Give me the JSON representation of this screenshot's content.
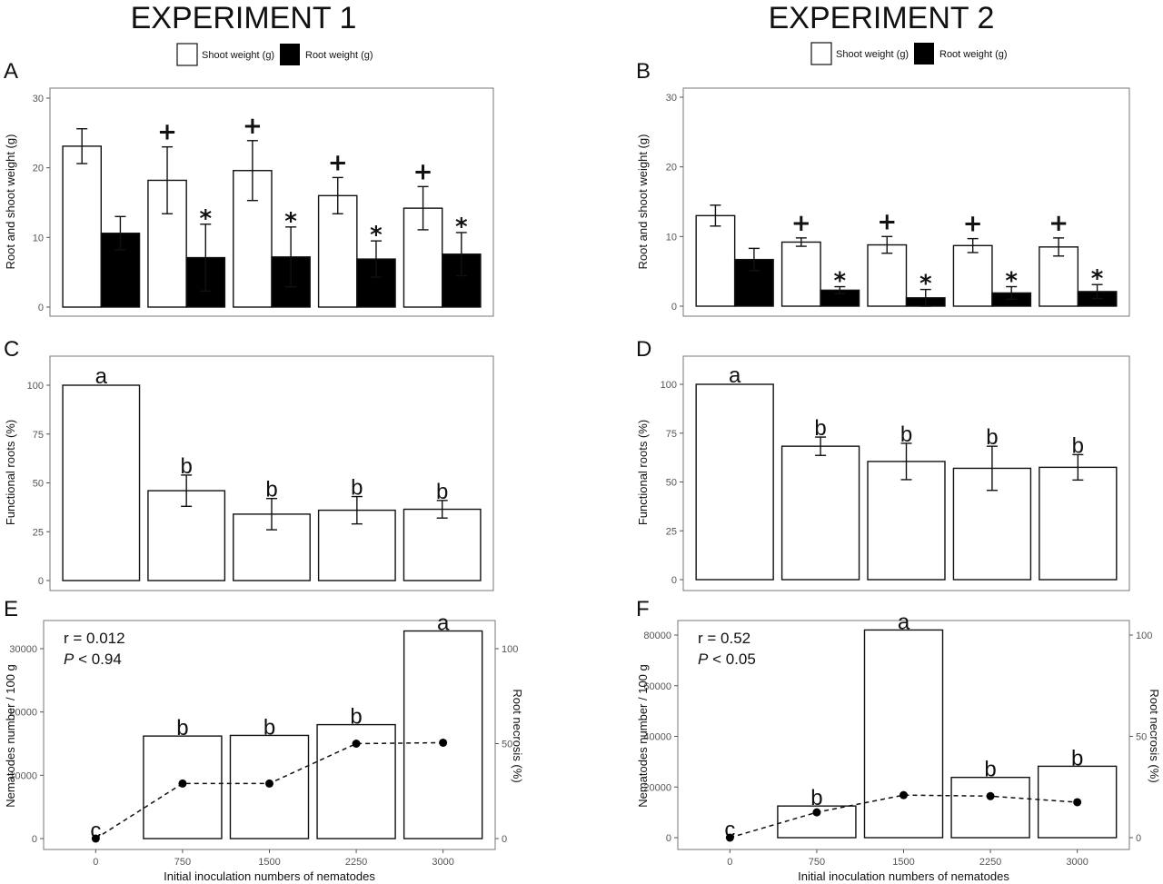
{
  "headers": [
    "EXPERIMENT 1",
    "EXPERIMENT 2"
  ],
  "legend": [
    {
      "name": "Shoot weight (g)",
      "color": "#ffffff"
    },
    {
      "name": "Root weight (g)",
      "color": "#000000"
    }
  ],
  "chart_data": [
    {
      "panel": "A",
      "type": "bar",
      "experiment": "EXPERIMENT 1",
      "ylabel": "Root and shoot weight (g)",
      "ylim": [
        0,
        30
      ],
      "yticks": [
        "0",
        "10",
        "20",
        "30"
      ],
      "series": [
        {
          "name": "Shoot weight (g)",
          "color": "#ffffff",
          "values": [
            23.1,
            18.2,
            19.6,
            16.0,
            14.2
          ],
          "errors": [
            2.5,
            4.8,
            4.3,
            2.6,
            3.1
          ],
          "markers": [
            "",
            "+",
            "+",
            "+",
            "+"
          ]
        },
        {
          "name": "Root weight (g)",
          "color": "#000000",
          "values": [
            10.6,
            7.1,
            7.2,
            6.9,
            7.6
          ],
          "errors": [
            2.4,
            4.8,
            4.3,
            2.6,
            3.1
          ],
          "markers": [
            "",
            "*",
            "*",
            "*",
            "*"
          ]
        }
      ]
    },
    {
      "panel": "B",
      "type": "bar",
      "experiment": "EXPERIMENT 2",
      "ylabel": "Root and shoot weight (g)",
      "ylim": [
        0,
        30
      ],
      "yticks": [
        "0",
        "10",
        "20",
        "30"
      ],
      "series": [
        {
          "name": "Shoot weight (g)",
          "color": "#ffffff",
          "values": [
            13.0,
            9.2,
            8.8,
            8.7,
            8.5
          ],
          "errors": [
            1.5,
            0.6,
            1.2,
            1.0,
            1.3
          ],
          "markers": [
            "",
            "+",
            "+",
            "+",
            "+"
          ]
        },
        {
          "name": "Root weight (g)",
          "color": "#000000",
          "values": [
            6.7,
            2.3,
            1.2,
            1.9,
            2.1
          ],
          "errors": [
            1.6,
            0.5,
            1.2,
            0.9,
            1.0
          ],
          "markers": [
            "",
            "*",
            "*",
            "*",
            "*"
          ]
        }
      ]
    },
    {
      "panel": "C",
      "type": "bar",
      "experiment": "EXPERIMENT 1",
      "ylabel": "Functional roots (%)",
      "ylim": [
        0,
        100
      ],
      "yticks": [
        "0",
        "25",
        "50",
        "75",
        "100"
      ],
      "series": [
        {
          "values": [
            100,
            46,
            34,
            36,
            36.5
          ],
          "errors": [
            0,
            8,
            8,
            7,
            4.5
          ],
          "letters": [
            "a",
            "b",
            "b",
            "b",
            "b"
          ]
        }
      ]
    },
    {
      "panel": "D",
      "type": "bar",
      "experiment": "EXPERIMENT 2",
      "ylabel": "Functional roots (%)",
      "ylim": [
        0,
        100
      ],
      "yticks": [
        "0",
        "25",
        "50",
        "75",
        "100"
      ],
      "series": [
        {
          "values": [
            100,
            68.3,
            60.5,
            57,
            57.5
          ],
          "errors": [
            0,
            4.7,
            9.3,
            11.3,
            6.5
          ],
          "letters": [
            "a",
            "b",
            "b",
            "b",
            "b"
          ]
        }
      ]
    },
    {
      "panel": "E",
      "type": "bar+line",
      "experiment": "EXPERIMENT 1",
      "xlabel": "Initial inoculation numbers of nematodes",
      "categories": [
        "0",
        "750",
        "1500",
        "2250",
        "3000"
      ],
      "ylabel": "Nematodes number / 100 g",
      "ylim": [
        0,
        30000
      ],
      "yticks": [
        "0",
        "10000",
        "20000",
        "30000"
      ],
      "y2label": "Root necrosis (%)",
      "y2lim": [
        0,
        100
      ],
      "y2ticks": [
        "0",
        "50",
        "100"
      ],
      "bars": {
        "values": [
          0,
          16200,
          16300,
          18000,
          32800
        ],
        "letters": [
          "c",
          "b",
          "b",
          "b",
          "a"
        ]
      },
      "line": {
        "values": [
          0,
          29,
          29,
          50,
          50.5
        ],
        "style": "dashed"
      },
      "stats": {
        "r": "r = 0.012",
        "p_label": "P",
        "p_value": " < 0.94"
      }
    },
    {
      "panel": "F",
      "type": "bar+line",
      "experiment": "EXPERIMENT 2",
      "xlabel": "Initial inoculation numbers of nematodes",
      "categories": [
        "0",
        "750",
        "1500",
        "2250",
        "3000"
      ],
      "ylabel": "Nematodes number / 100 g",
      "ylim": [
        0,
        80000
      ],
      "yticks": [
        "0",
        "20000",
        "40000",
        "60000",
        "80000"
      ],
      "y2label": "Root necrosis (%)",
      "y2lim": [
        0,
        100
      ],
      "y2ticks": [
        "0",
        "50",
        "100"
      ],
      "bars": {
        "values": [
          0,
          12500,
          82000,
          23800,
          28200
        ],
        "letters": [
          "c",
          "b",
          "a",
          "b",
          "b"
        ]
      },
      "line": {
        "values": [
          0,
          12.5,
          21,
          20.5,
          17.5
        ],
        "style": "dashed"
      },
      "stats": {
        "r": "r = 0.52",
        "p_label": "P",
        "p_value": " < 0.05"
      }
    }
  ]
}
